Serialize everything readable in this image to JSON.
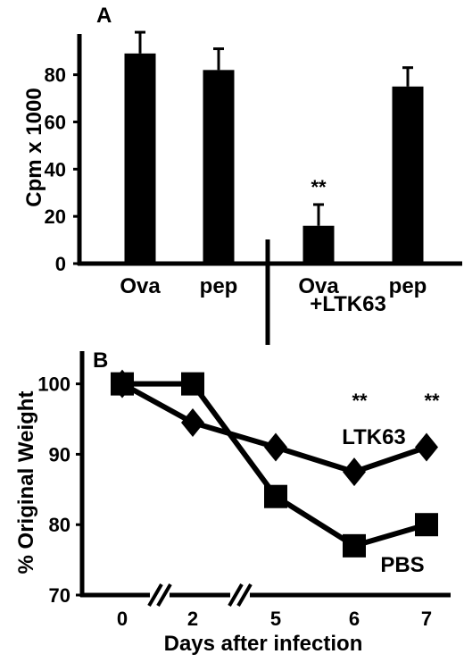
{
  "chart_data": [
    {
      "panel_label": "A",
      "type": "bar",
      "categories": [
        "Ova",
        "pep",
        "Ova",
        "pep"
      ],
      "group_label": "+LTK63",
      "values": [
        89,
        82,
        16,
        75
      ],
      "errors": [
        9,
        9,
        9,
        8
      ],
      "significance": [
        "",
        "",
        "**",
        ""
      ],
      "xlabel": "",
      "ylabel": "Cpm x 1000",
      "yticks": [
        0,
        20,
        40,
        60,
        80
      ],
      "ylim": [
        0,
        95
      ],
      "grid": false,
      "bar_color": "#000000"
    },
    {
      "panel_label": "B",
      "type": "line",
      "x": [
        "0",
        "2",
        "5",
        "6",
        "7"
      ],
      "xlabel": "Days after infection",
      "ylabel": "% Original Weight",
      "yticks": [
        70,
        80,
        90,
        100
      ],
      "ylim": [
        70,
        103
      ],
      "axis_break_after": [
        "0",
        "2"
      ],
      "series": [
        {
          "name": "LTK63",
          "marker": "diamond",
          "values": [
            100,
            94.5,
            91,
            87.5,
            91
          ]
        },
        {
          "name": "PBS",
          "marker": "square",
          "values": [
            100,
            100,
            84,
            77,
            80
          ]
        }
      ],
      "significance": [
        "",
        "",
        "",
        "**",
        "**"
      ],
      "grid": false,
      "line_color": "#000000"
    }
  ]
}
